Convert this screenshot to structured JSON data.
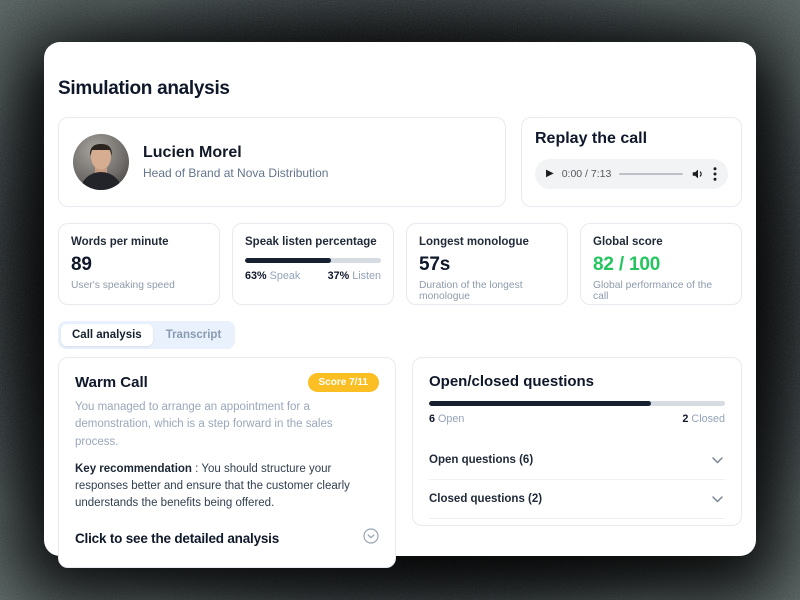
{
  "page": {
    "title": "Simulation analysis"
  },
  "profile": {
    "name": "Lucien Morel",
    "role": "Head of Brand at Nova Distribution"
  },
  "replay": {
    "title": "Replay the call",
    "player": {
      "time": "0:00 / 7:13",
      "play_glyph": "▶",
      "kebab_glyph": "⋮"
    }
  },
  "stats": [
    {
      "label": "Words per minute",
      "value": "89",
      "caption": "User's speaking speed"
    },
    {
      "label": "Speak listen percentage",
      "bar_pct": 63,
      "speak_pct": "63%",
      "speak_word": "Speak",
      "listen_pct": "37%",
      "listen_word": "Listen"
    },
    {
      "label": "Longest monologue",
      "value": "57s",
      "caption": "Duration of the longest monologue"
    },
    {
      "label": "Global score",
      "value": "82 / 100",
      "caption": "Global performance of the call"
    }
  ],
  "tabs": [
    {
      "label": "Call analysis"
    },
    {
      "label": "Transcript"
    }
  ],
  "warm_call": {
    "title": "Warm Call",
    "score_badge": "Score 7/11",
    "summary": "You managed to arrange an appointment for a demonstration, which is a step forward in the sales process.",
    "recommendation_label": "Key recommendation",
    "recommendation_separator": " : ",
    "recommendation": "You should structure your responses better and ensure that the customer clearly understands the benefits being offered.",
    "cta": "Click to see the detailed analysis"
  },
  "questions": {
    "title": "Open/closed questions",
    "bar_pct": 75,
    "open_count": "6",
    "open_word": "Open",
    "closed_count": "2",
    "closed_word": "Closed",
    "rows": [
      {
        "label": "Open questions (6)"
      },
      {
        "label": "Closed questions (2)"
      }
    ]
  },
  "colors": {
    "score_green": "#22c55e",
    "badge_amber": "#fbbf24",
    "bar_dark": "#16202e"
  }
}
